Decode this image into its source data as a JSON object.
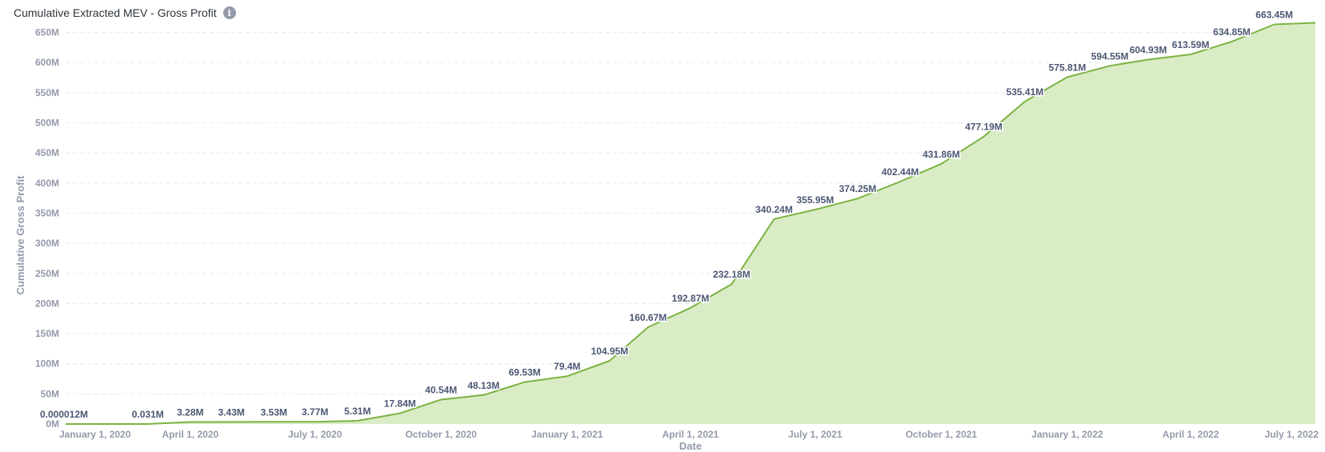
{
  "header": {
    "title": "Cumulative Extracted MEV - Gross Profit",
    "info_icon": "info-icon"
  },
  "colors": {
    "line": "#7cb342",
    "area": "#d9ecc6",
    "grid": "#e6e9ee",
    "tick": "#949aab",
    "label": "#4c5773"
  },
  "chart_data": {
    "type": "area",
    "title": "Cumulative Extracted MEV - Gross Profit",
    "ylabel": "Cumulative Gross Profit",
    "xlabel": "Date",
    "ylim": [
      0,
      680
    ],
    "y_unit": "M",
    "grid": "horizontal",
    "y_ticks": [
      {
        "value": 0,
        "label": "0M"
      },
      {
        "value": 50,
        "label": "50M"
      },
      {
        "value": 100,
        "label": "100M"
      },
      {
        "value": 150,
        "label": "150M"
      },
      {
        "value": 200,
        "label": "200M"
      },
      {
        "value": 250,
        "label": "250M"
      },
      {
        "value": 300,
        "label": "300M"
      },
      {
        "value": 350,
        "label": "350M"
      },
      {
        "value": 400,
        "label": "400M"
      },
      {
        "value": 450,
        "label": "450M"
      },
      {
        "value": 500,
        "label": "500M"
      },
      {
        "value": 550,
        "label": "550M"
      },
      {
        "value": 600,
        "label": "600M"
      },
      {
        "value": 650,
        "label": "650M"
      }
    ],
    "x_range": [
      "2020-01-01",
      "2022-07-01"
    ],
    "x_ticks": [
      {
        "date": "2020-01-01",
        "label": "January 1, 2020"
      },
      {
        "date": "2020-04-01",
        "label": "April 1, 2020"
      },
      {
        "date": "2020-07-01",
        "label": "July 1, 2020"
      },
      {
        "date": "2020-10-01",
        "label": "October 1, 2020"
      },
      {
        "date": "2021-01-01",
        "label": "January 1, 2021"
      },
      {
        "date": "2021-04-01",
        "label": "April 1, 2021"
      },
      {
        "date": "2021-07-01",
        "label": "July 1, 2021"
      },
      {
        "date": "2021-10-01",
        "label": "October 1, 2021"
      },
      {
        "date": "2022-01-01",
        "label": "January 1, 2022"
      },
      {
        "date": "2022-04-01",
        "label": "April 1, 2022"
      },
      {
        "date": "2022-07-01",
        "label": "July 1, 2022"
      }
    ],
    "series": [
      {
        "points": [
          {
            "date": "2020-01-01",
            "value": 1.2e-05
          },
          {
            "date": "2020-03-01",
            "value": 0.031
          },
          {
            "date": "2020-04-01",
            "value": 3.28
          },
          {
            "date": "2020-05-01",
            "value": 3.43
          },
          {
            "date": "2020-06-01",
            "value": 3.53
          },
          {
            "date": "2020-07-01",
            "value": 3.77
          },
          {
            "date": "2020-08-01",
            "value": 5.31
          },
          {
            "date": "2020-09-01",
            "value": 17.84
          },
          {
            "date": "2020-10-01",
            "value": 40.54
          },
          {
            "date": "2020-11-01",
            "value": 48.13
          },
          {
            "date": "2020-12-01",
            "value": 69.53
          },
          {
            "date": "2021-01-01",
            "value": 79.4
          },
          {
            "date": "2021-02-01",
            "value": 104.95
          },
          {
            "date": "2021-03-01",
            "value": 160.67
          },
          {
            "date": "2021-04-01",
            "value": 192.87
          },
          {
            "date": "2021-05-01",
            "value": 232.18
          },
          {
            "date": "2021-06-01",
            "value": 340.24
          },
          {
            "date": "2021-07-01",
            "value": 355.95
          },
          {
            "date": "2021-08-01",
            "value": 374.25
          },
          {
            "date": "2021-09-01",
            "value": 402.44
          },
          {
            "date": "2021-10-01",
            "value": 431.86
          },
          {
            "date": "2021-11-01",
            "value": 477.19
          },
          {
            "date": "2021-12-01",
            "value": 535.41
          },
          {
            "date": "2022-01-01",
            "value": 575.81
          },
          {
            "date": "2022-02-01",
            "value": 594.55
          },
          {
            "date": "2022-03-01",
            "value": 604.93
          },
          {
            "date": "2022-04-01",
            "value": 613.59
          },
          {
            "date": "2022-05-01",
            "value": 634.85
          },
          {
            "date": "2022-06-01",
            "value": 663.45
          }
        ],
        "data_labels": [
          {
            "date": "2020-01-01",
            "value": 1.2e-05,
            "label": "0.000012M"
          },
          {
            "date": "2020-03-01",
            "value": 0.031,
            "label": "0.031M"
          },
          {
            "date": "2020-04-01",
            "value": 3.28,
            "label": "3.28M"
          },
          {
            "date": "2020-05-01",
            "value": 3.43,
            "label": "3.43M"
          },
          {
            "date": "2020-06-01",
            "value": 3.53,
            "label": "3.53M"
          },
          {
            "date": "2020-07-01",
            "value": 3.77,
            "label": "3.77M"
          },
          {
            "date": "2020-08-01",
            "value": 5.31,
            "label": "5.31M"
          },
          {
            "date": "2020-09-01",
            "value": 17.84,
            "label": "17.84M"
          },
          {
            "date": "2020-10-01",
            "value": 40.54,
            "label": "40.54M"
          },
          {
            "date": "2020-11-01",
            "value": 48.13,
            "label": "48.13M"
          },
          {
            "date": "2020-12-01",
            "value": 69.53,
            "label": "69.53M"
          },
          {
            "date": "2021-01-01",
            "value": 79.4,
            "label": "79.4M"
          },
          {
            "date": "2021-02-01",
            "value": 104.95,
            "label": "104.95M"
          },
          {
            "date": "2021-03-01",
            "value": 160.67,
            "label": "160.67M"
          },
          {
            "date": "2021-04-01",
            "value": 192.87,
            "label": "192.87M"
          },
          {
            "date": "2021-05-01",
            "value": 232.18,
            "label": "232.18M"
          },
          {
            "date": "2021-06-01",
            "value": 340.24,
            "label": "340.24M"
          },
          {
            "date": "2021-07-01",
            "value": 355.95,
            "label": "355.95M"
          },
          {
            "date": "2021-08-01",
            "value": 374.25,
            "label": "374.25M"
          },
          {
            "date": "2021-09-01",
            "value": 402.44,
            "label": "402.44M"
          },
          {
            "date": "2021-10-01",
            "value": 431.86,
            "label": "431.86M"
          },
          {
            "date": "2021-11-01",
            "value": 477.19,
            "label": "477.19M"
          },
          {
            "date": "2021-12-01",
            "value": 535.41,
            "label": "535.41M"
          },
          {
            "date": "2022-01-01",
            "value": 575.81,
            "label": "575.81M"
          },
          {
            "date": "2022-02-01",
            "value": 594.55,
            "label": "594.55M"
          },
          {
            "date": "2022-03-01",
            "value": 604.93,
            "label": "604.93M"
          },
          {
            "date": "2022-04-01",
            "value": 613.59,
            "label": "613.59M"
          },
          {
            "date": "2022-05-01",
            "value": 634.85,
            "label": "634.85M"
          },
          {
            "date": "2022-06-01",
            "value": 663.45,
            "label": "663.45M"
          }
        ]
      }
    ]
  }
}
